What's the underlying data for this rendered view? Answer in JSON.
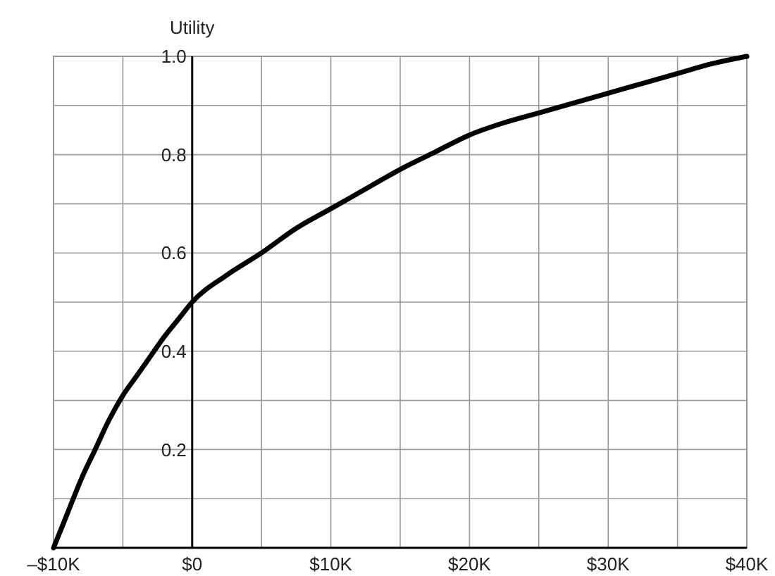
{
  "chart_data": {
    "type": "line",
    "ylabel": "Utility",
    "x": [
      -10,
      -9,
      -8,
      -7,
      -6,
      -5,
      -4,
      -3,
      -2,
      -1,
      0,
      2.5,
      5,
      7.5,
      10,
      12.5,
      15,
      17.5,
      20,
      22.5,
      25,
      27.5,
      30,
      32.5,
      35,
      37.5,
      40
    ],
    "series": [
      {
        "color": "#000000",
        "values": [
          0,
          0.07,
          0.14,
          0.2,
          0.26,
          0.31,
          0.35,
          0.39,
          0.43,
          0.465,
          0.5,
          0.555,
          0.6,
          0.65,
          0.69,
          0.73,
          0.77,
          0.805,
          0.84,
          0.865,
          0.885,
          0.905,
          0.925,
          0.945,
          0.965,
          0.985,
          1.0
        ]
      }
    ],
    "xlim": [
      -10,
      40
    ],
    "xticks": [
      {
        "value": -10,
        "label": "–$10K"
      },
      {
        "value": -5,
        "label": null
      },
      {
        "value": 0,
        "label": "$0"
      },
      {
        "value": 5,
        "label": null
      },
      {
        "value": 10,
        "label": "$10K"
      },
      {
        "value": 15,
        "label": null
      },
      {
        "value": 20,
        "label": "$20K"
      },
      {
        "value": 25,
        "label": null
      },
      {
        "value": 30,
        "label": "$30K"
      },
      {
        "value": 35,
        "label": null
      },
      {
        "value": 40,
        "label": "$40K"
      }
    ],
    "ylim": [
      0,
      1
    ],
    "yticks": [
      {
        "value": 0,
        "label": null
      },
      {
        "value": 0.1,
        "label": null
      },
      {
        "value": 0.2,
        "label": "0.2"
      },
      {
        "value": 0.3,
        "label": null
      },
      {
        "value": 0.4,
        "label": "0.4"
      },
      {
        "value": 0.5,
        "label": null
      },
      {
        "value": 0.6,
        "label": "0.6"
      },
      {
        "value": 0.7,
        "label": null
      },
      {
        "value": 0.8,
        "label": "0.8"
      },
      {
        "value": 0.9,
        "label": null
      },
      {
        "value": 1.0,
        "label": "1.0"
      }
    ],
    "grid": true,
    "marker": "none",
    "line_style": "solid"
  }
}
